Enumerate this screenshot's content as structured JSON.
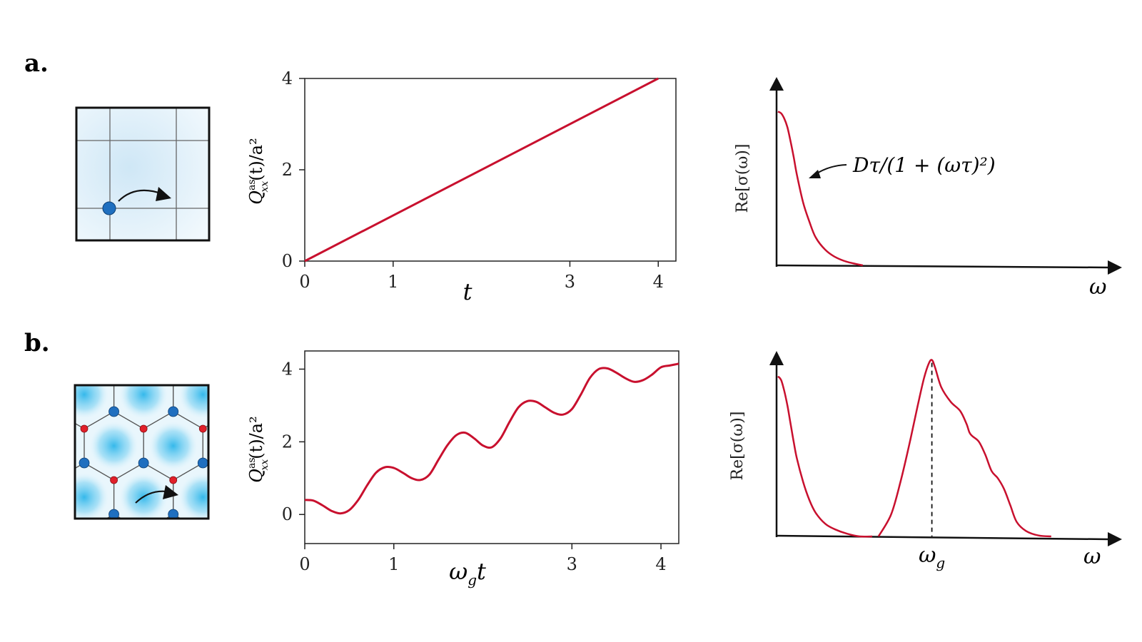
{
  "panels": {
    "a": {
      "label": "a."
    },
    "b": {
      "label": "b."
    }
  },
  "colors": {
    "curve": "#c8102e",
    "site_blue": "#1f6fbf",
    "site_red": "#e0202a",
    "glow": "#3ec2ee",
    "tint": "#e8f4fb"
  },
  "annotation_a": "Dτ/(1 + (ωτ)²)",
  "chart_data": [
    {
      "type": "line",
      "panel": "a-middle",
      "xlabel": "t",
      "ylabel": "Q",
      "ylabel_sup": "as",
      "ylabel_sub": "xx",
      "ylabel_rest": "(t)/a²",
      "xlim": [
        0,
        4.2
      ],
      "ylim": [
        0,
        4
      ],
      "xticks": [
        0,
        1,
        3,
        4
      ],
      "yticks": [
        0,
        2,
        4
      ],
      "series": [
        {
          "x": [
            0,
            4
          ],
          "y": [
            0,
            4
          ]
        }
      ]
    },
    {
      "type": "line",
      "panel": "b-middle",
      "xlabel": "ω",
      "xlabel_sub": "g",
      "xlabel_rest": "t",
      "ylabel": "Q",
      "ylabel_sup": "as",
      "ylabel_sub": "xx",
      "ylabel_rest": "(t)/a²",
      "xlim": [
        0,
        4.2
      ],
      "ylim": [
        -0.8,
        4.5
      ],
      "xticks": [
        0,
        1,
        3,
        4
      ],
      "yticks": [
        0,
        2,
        4
      ],
      "series": [
        {
          "x": [
            0,
            0.1,
            0.2,
            0.3,
            0.4,
            0.5,
            0.6,
            0.7,
            0.8,
            0.9,
            1.0,
            1.1,
            1.2,
            1.3,
            1.4,
            1.5,
            1.6,
            1.7,
            1.8,
            1.9,
            2.0,
            2.1,
            2.2,
            2.3,
            2.4,
            2.5,
            2.6,
            2.7,
            2.8,
            2.9,
            3.0,
            3.1,
            3.2,
            3.3,
            3.4,
            3.5,
            3.6,
            3.7,
            3.8,
            3.9,
            4.0,
            4.1,
            4.2
          ],
          "y": [
            0.4,
            0.38,
            0.25,
            0.1,
            0.03,
            0.12,
            0.4,
            0.8,
            1.15,
            1.3,
            1.28,
            1.15,
            1.0,
            0.95,
            1.1,
            1.5,
            1.9,
            2.18,
            2.25,
            2.1,
            1.9,
            1.85,
            2.1,
            2.55,
            2.95,
            3.12,
            3.1,
            2.95,
            2.8,
            2.75,
            2.9,
            3.3,
            3.75,
            4.0,
            4.02,
            3.9,
            3.75,
            3.65,
            3.7,
            3.85,
            4.05,
            4.1,
            4.15
          ]
        }
      ]
    },
    {
      "type": "line",
      "panel": "a-right",
      "xlabel": "ω",
      "ylabel": "Re[σ(ω)]",
      "xlim": [
        0,
        1
      ],
      "ylim": [
        0,
        1
      ],
      "series": [
        {
          "x": [
            0,
            0.01,
            0.02,
            0.03,
            0.04,
            0.05,
            0.06,
            0.08,
            0.1,
            0.12,
            0.15,
            0.18,
            0.22,
            0.27
          ],
          "y": [
            0.88,
            0.87,
            0.84,
            0.79,
            0.71,
            0.62,
            0.52,
            0.36,
            0.25,
            0.16,
            0.09,
            0.05,
            0.02,
            0.0
          ]
        }
      ]
    },
    {
      "type": "line",
      "panel": "b-right",
      "xlabel": "ω",
      "ylabel": "Re[σ(ω)]",
      "xtick_label": "ω",
      "xtick_sub": "g",
      "xlim": [
        0,
        1
      ],
      "ylim": [
        0,
        1
      ],
      "peak_x": 0.49,
      "series": [
        {
          "x": [
            0,
            0.01,
            0.02,
            0.03,
            0.04,
            0.05,
            0.06,
            0.08,
            0.1,
            0.12,
            0.15,
            0.18,
            0.22,
            0.26,
            0.3
          ],
          "y": [
            0.88,
            0.86,
            0.8,
            0.72,
            0.62,
            0.52,
            0.43,
            0.3,
            0.2,
            0.13,
            0.07,
            0.04,
            0.015,
            0.0,
            0.0
          ]
        },
        {
          "x": [
            0.32,
            0.36,
            0.39,
            0.42,
            0.445,
            0.465,
            0.48,
            0.49,
            0.5,
            0.52,
            0.55,
            0.58,
            0.6,
            0.61,
            0.62,
            0.64,
            0.66,
            0.68,
            0.7,
            0.72,
            0.74,
            0.76,
            0.79,
            0.83,
            0.87
          ],
          "y": [
            0.0,
            0.12,
            0.3,
            0.52,
            0.72,
            0.87,
            0.95,
            0.97,
            0.93,
            0.82,
            0.74,
            0.69,
            0.62,
            0.57,
            0.55,
            0.52,
            0.45,
            0.36,
            0.32,
            0.26,
            0.17,
            0.08,
            0.03,
            0.005,
            0.0
          ]
        }
      ]
    }
  ]
}
